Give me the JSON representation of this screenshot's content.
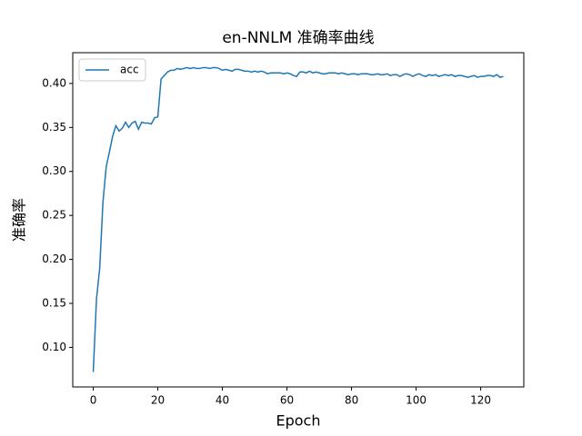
{
  "chart_data": {
    "type": "line",
    "title": "en-NNLM 准确率曲线",
    "x_label": "Epoch",
    "y_label": "准确率",
    "x": [
      0,
      1,
      2,
      3,
      4,
      5,
      6,
      7,
      8,
      9,
      10,
      11,
      12,
      13,
      14,
      15,
      16,
      17,
      18,
      19,
      20,
      21,
      22,
      23,
      24,
      25,
      26,
      27,
      28,
      29,
      30,
      31,
      32,
      33,
      34,
      35,
      36,
      37,
      38,
      39,
      40,
      41,
      42,
      43,
      44,
      45,
      46,
      47,
      48,
      49,
      50,
      51,
      52,
      53,
      54,
      55,
      56,
      57,
      58,
      59,
      60,
      61,
      62,
      63,
      64,
      65,
      66,
      67,
      68,
      69,
      70,
      71,
      72,
      73,
      74,
      75,
      76,
      77,
      78,
      79,
      80,
      81,
      82,
      83,
      84,
      85,
      86,
      87,
      88,
      89,
      90,
      91,
      92,
      93,
      94,
      95,
      96,
      97,
      98,
      99,
      100,
      101,
      102,
      103,
      104,
      105,
      106,
      107,
      108,
      109,
      110,
      111,
      112,
      113,
      114,
      115,
      116,
      117,
      118,
      119,
      120,
      121,
      122,
      123,
      124,
      125,
      126,
      127
    ],
    "series": [
      {
        "name": "acc",
        "color": "#1f77b4",
        "values": [
          0.072,
          0.155,
          0.19,
          0.265,
          0.305,
          0.322,
          0.34,
          0.352,
          0.346,
          0.349,
          0.356,
          0.35,
          0.355,
          0.357,
          0.348,
          0.356,
          0.355,
          0.355,
          0.354,
          0.361,
          0.362,
          0.405,
          0.409,
          0.413,
          0.415,
          0.415,
          0.417,
          0.416,
          0.417,
          0.418,
          0.417,
          0.418,
          0.417,
          0.417,
          0.418,
          0.418,
          0.417,
          0.418,
          0.418,
          0.417,
          0.415,
          0.416,
          0.415,
          0.414,
          0.416,
          0.416,
          0.415,
          0.414,
          0.414,
          0.413,
          0.414,
          0.413,
          0.414,
          0.413,
          0.411,
          0.412,
          0.412,
          0.412,
          0.412,
          0.411,
          0.412,
          0.411,
          0.409,
          0.408,
          0.413,
          0.413,
          0.412,
          0.414,
          0.412,
          0.413,
          0.412,
          0.411,
          0.411,
          0.412,
          0.412,
          0.412,
          0.411,
          0.412,
          0.411,
          0.41,
          0.411,
          0.411,
          0.41,
          0.411,
          0.411,
          0.411,
          0.41,
          0.41,
          0.411,
          0.41,
          0.41,
          0.411,
          0.409,
          0.41,
          0.41,
          0.408,
          0.41,
          0.411,
          0.41,
          0.408,
          0.41,
          0.411,
          0.409,
          0.408,
          0.41,
          0.409,
          0.41,
          0.408,
          0.409,
          0.41,
          0.409,
          0.41,
          0.408,
          0.409,
          0.409,
          0.408,
          0.407,
          0.408,
          0.409,
          0.407,
          0.408,
          0.408,
          0.409,
          0.409,
          0.408,
          0.41,
          0.407,
          0.408
        ]
      }
    ],
    "xlim": [
      -6.35,
      133.35
    ],
    "ylim": [
      0.055,
      0.435
    ],
    "xticks": [
      0,
      20,
      40,
      60,
      80,
      100,
      120
    ],
    "yticks": [
      {
        "value": 0.1,
        "label": "0.10"
      },
      {
        "value": 0.15,
        "label": "0.15"
      },
      {
        "value": 0.2,
        "label": "0.20"
      },
      {
        "value": 0.25,
        "label": "0.25"
      },
      {
        "value": 0.3,
        "label": "0.30"
      },
      {
        "value": 0.35,
        "label": "0.35"
      },
      {
        "value": 0.4,
        "label": "0.40"
      }
    ],
    "legend": "upper left",
    "grid": false
  }
}
